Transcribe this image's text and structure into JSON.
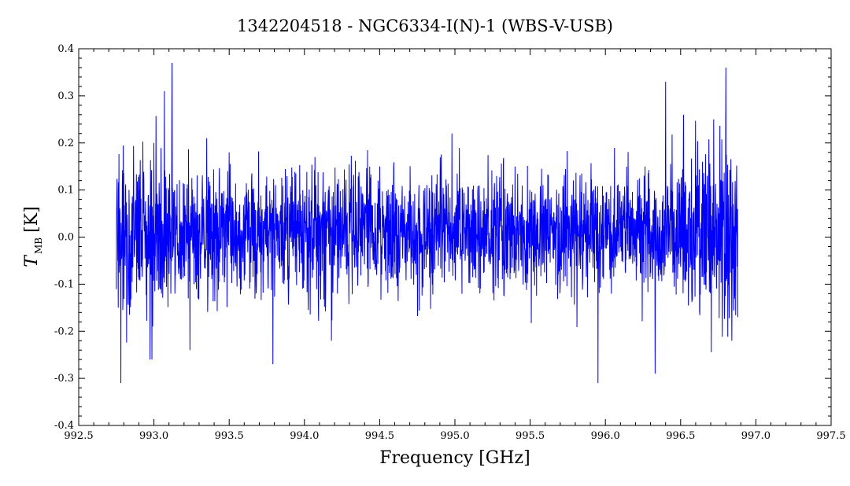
{
  "chart_data": {
    "type": "line",
    "title": "1342204518 - NGC6334-I(N)-1 (WBS-V-USB)",
    "xlabel": "Frequency [GHz]",
    "ylabel": {
      "symbol": "T",
      "subscript": "MB",
      "unit": "[K]"
    },
    "xlim": [
      992.5,
      997.5
    ],
    "ylim": [
      -0.4,
      0.4
    ],
    "xticks": [
      "992.5",
      "993.0",
      "993.5",
      "994.0",
      "994.5",
      "995.0",
      "995.5",
      "996.0",
      "996.5",
      "997.0",
      "997.5"
    ],
    "yticks": [
      "-0.4",
      "-0.3",
      "-0.2",
      "-0.1",
      "0.0",
      "0.1",
      "0.2",
      "0.3",
      "0.4"
    ],
    "grid": false,
    "legend": "none",
    "series": [
      {
        "color": "#0000ff",
        "x_start": 992.75,
        "x_end": 996.88,
        "profile": [
          {
            "x": 992.76,
            "y": -0.05
          },
          {
            "x": 992.78,
            "y": -0.31
          },
          {
            "x": 992.9,
            "y": 0.1
          },
          {
            "x": 993.0,
            "y": 0.2
          },
          {
            "x": 993.07,
            "y": 0.31
          },
          {
            "x": 993.12,
            "y": 0.37
          },
          {
            "x": 993.24,
            "y": -0.24
          },
          {
            "x": 993.35,
            "y": 0.21
          },
          {
            "x": 993.5,
            "y": 0.18
          },
          {
            "x": 993.79,
            "y": -0.27
          },
          {
            "x": 994.18,
            "y": -0.22
          },
          {
            "x": 994.5,
            "y": 0.15
          },
          {
            "x": 994.98,
            "y": 0.22
          },
          {
            "x": 995.4,
            "y": 0.15
          },
          {
            "x": 995.95,
            "y": -0.31
          },
          {
            "x": 996.33,
            "y": -0.29
          },
          {
            "x": 996.4,
            "y": 0.33
          },
          {
            "x": 996.72,
            "y": 0.25
          },
          {
            "x": 996.8,
            "y": 0.36
          },
          {
            "x": 996.84,
            "y": -0.22
          },
          {
            "x": 996.88,
            "y": -0.17
          }
        ],
        "noise_rms": 0.065
      }
    ]
  },
  "colors": {
    "line": "#0000ff",
    "axes": "#000000",
    "background": "#ffffff"
  }
}
